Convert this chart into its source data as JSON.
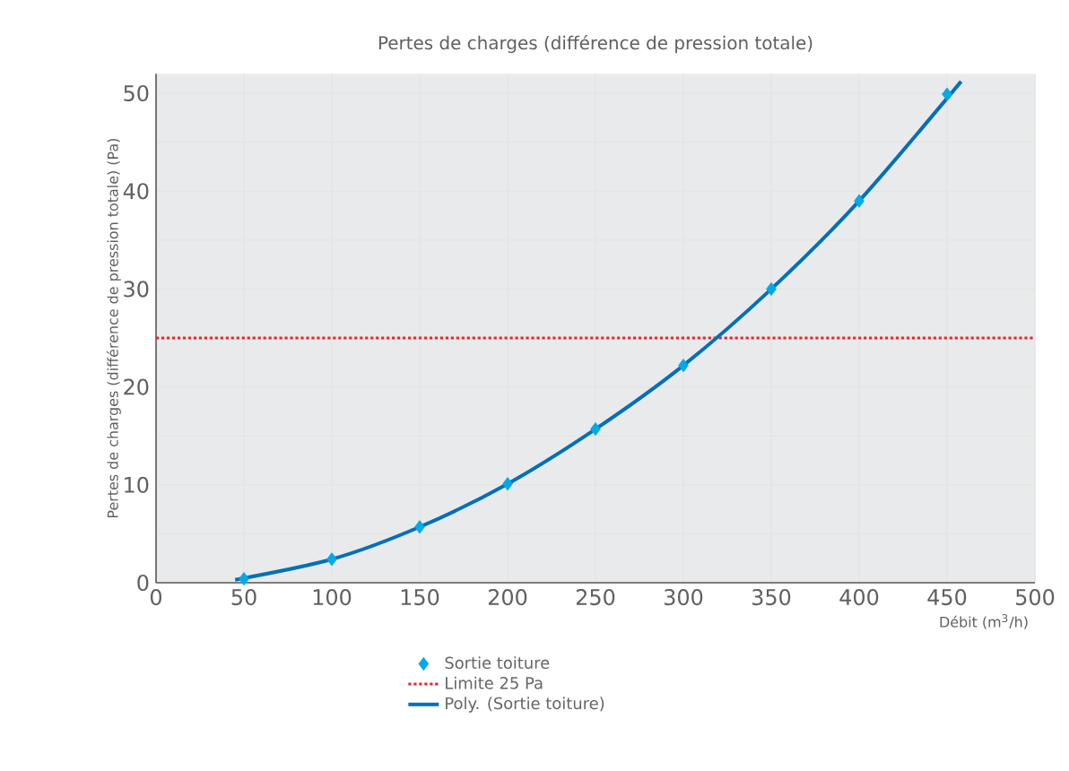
{
  "chart_data": {
    "type": "scatter",
    "title": "Pertes de charges (différence de pression totale)",
    "xlabel": "Débit (m$^{3}$/h)",
    "ylabel": "Pertes de charges (différence de pression totale) (Pa)",
    "xlim": [
      0,
      500
    ],
    "ylim": [
      0,
      52
    ],
    "xticks": [
      0,
      50,
      100,
      150,
      200,
      250,
      300,
      350,
      400,
      450,
      500
    ],
    "yticks": [
      0,
      {
        "value": 5,
        "label": null
      },
      10,
      {
        "value": 15,
        "label": null
      },
      20,
      {
        "value": 25,
        "label": null
      },
      30,
      {
        "value": 35,
        "label": null
      },
      40,
      {
        "value": 45,
        "label": null
      },
      50
    ],
    "grid": true,
    "legend": "bottom",
    "x": [
      50,
      100,
      150,
      200,
      250,
      300,
      350,
      400,
      450
    ],
    "series": [
      {
        "name": "Sortie toiture",
        "color": "#00a9e8",
        "marker": "diamond",
        "values": [
          0.4,
          2.4,
          5.7,
          10.1,
          15.7,
          22.2,
          30.0,
          39.0,
          49.9
        ]
      },
      {
        "name": "Poly. (Sortie toiture)",
        "type": "line",
        "color": "#0070b8",
        "marker": "none",
        "line_style": "solid",
        "x": [
          45,
          100,
          150,
          200,
          250,
          300,
          350,
          400,
          458
        ],
        "values": [
          0.3,
          2.4,
          5.7,
          10.1,
          15.7,
          22.2,
          30.0,
          39.0,
          51.2
        ]
      }
    ],
    "ref_lines": [
      {
        "axis": "y",
        "value": 25,
        "label": "Limite 25 Pa",
        "color": "#e8262a",
        "line_style": "dotted"
      }
    ]
  }
}
